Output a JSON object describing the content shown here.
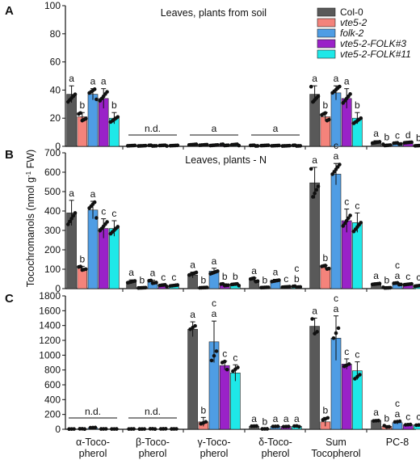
{
  "figure": {
    "y_axis_label": "Tocochromanols (nmol g",
    "y_axis_label_sup": "-1",
    "y_axis_label_end": " FW)",
    "x_categories": [
      [
        "α-Toco-",
        "pherol"
      ],
      [
        "β-Toco-",
        "pherol"
      ],
      [
        "γ-Toco-",
        "pherol"
      ],
      [
        "δ-Toco-",
        "pherol"
      ],
      [
        "Sum",
        "Tocopherol"
      ],
      [
        "PC-8",
        ""
      ]
    ]
  },
  "legend": {
    "placement": "top-right",
    "items": [
      {
        "label": "Col-0",
        "color": "#595959",
        "italic": false
      },
      {
        "label": "vte5-2",
        "color": "#f4837b",
        "italic": true
      },
      {
        "label": "folk-2",
        "color": "#4f9de4",
        "italic": true
      },
      {
        "label": "vte5-2-FOLK#3",
        "color": "#9a22c8",
        "italic": true
      },
      {
        "label": "vte5-2-FOLK#11",
        "color": "#1ee8e8",
        "italic": true
      }
    ]
  },
  "chart_data": [
    {
      "type": "bar",
      "panel": "A",
      "annotation": "Leaves, plants from soil",
      "categories": [
        "α-Tocopherol",
        "β-Tocopherol",
        "γ-Tocopherol",
        "δ-Tocopherol",
        "Sum Tocopherol",
        "PC-8"
      ],
      "ylim": [
        0,
        100
      ],
      "yticks": [
        0,
        20,
        40,
        60,
        80,
        100
      ],
      "series": [
        {
          "name": "Col-0",
          "values": [
            37,
            0.5,
            1,
            0.5,
            37,
            3
          ],
          "errors": [
            6,
            0.3,
            0.5,
            0.3,
            6,
            1
          ]
        },
        {
          "name": "vte5-2",
          "values": [
            21,
            0.5,
            1,
            0.5,
            21,
            1
          ],
          "errors": [
            3,
            0.3,
            0.5,
            0.3,
            3,
            0.5
          ]
        },
        {
          "name": "folk-2",
          "values": [
            37,
            0.5,
            1,
            0.5,
            38,
            2
          ],
          "errors": [
            4,
            0.3,
            0.5,
            0.3,
            5,
            0.5
          ]
        },
        {
          "name": "vte5-2-FOLK#3",
          "values": [
            34,
            0.5,
            1,
            0.5,
            34,
            2.5
          ],
          "errors": [
            7,
            0.3,
            0.5,
            0.3,
            7,
            0.5
          ]
        },
        {
          "name": "vte5-2-FOLK#11",
          "values": [
            20,
            0.5,
            1,
            0.5,
            20,
            0.5
          ],
          "errors": [
            4,
            0.3,
            0.5,
            0.3,
            4,
            0.3
          ]
        }
      ],
      "letters": [
        [
          "a",
          "b",
          "a",
          "a",
          "b"
        ],
        [
          "",
          "",
          "",
          "",
          ""
        ],
        [
          "",
          "",
          "",
          "",
          ""
        ],
        [
          "",
          "",
          "",
          "",
          ""
        ],
        [
          "a",
          "b",
          "a",
          "a",
          "b"
        ],
        [
          "a",
          "b",
          "c",
          "d",
          "b"
        ]
      ],
      "group_labels": [
        {
          "group": 1,
          "text": "n.d."
        },
        {
          "group": 2,
          "text": "a"
        },
        {
          "group": 3,
          "text": "a"
        }
      ]
    },
    {
      "type": "bar",
      "panel": "B",
      "annotation": "Leaves, plants - N",
      "categories": [
        "α-Tocopherol",
        "β-Tocopherol",
        "γ-Tocopherol",
        "δ-Tocopherol",
        "Sum Tocopherol",
        "PC-8"
      ],
      "ylim": [
        0,
        700
      ],
      "yticks": [
        0,
        100,
        200,
        300,
        400,
        500,
        600,
        700
      ],
      "series": [
        {
          "name": "Col-0",
          "values": [
            390,
            35,
            70,
            45,
            545,
            25
          ],
          "errors": [
            65,
            10,
            15,
            10,
            80,
            5
          ]
        },
        {
          "name": "vte5-2",
          "values": [
            105,
            5,
            5,
            5,
            110,
            5
          ],
          "errors": [
            10,
            2,
            2,
            2,
            10,
            2
          ]
        },
        {
          "name": "folk-2",
          "values": [
            405,
            35,
            90,
            40,
            590,
            25
          ],
          "errors": [
            45,
            8,
            15,
            8,
            55,
            5
          ]
        },
        {
          "name": "vte5-2-FOLK#3",
          "values": [
            310,
            15,
            20,
            10,
            350,
            20
          ],
          "errors": [
            50,
            5,
            5,
            3,
            60,
            5
          ]
        },
        {
          "name": "vte5-2-FOLK#11",
          "values": [
            310,
            15,
            20,
            10,
            340,
            15
          ],
          "errors": [
            40,
            5,
            5,
            3,
            50,
            5
          ]
        }
      ],
      "letters": [
        [
          "a",
          "b",
          "a",
          "c",
          "c"
        ],
        [
          "a",
          "b",
          "a",
          "c",
          "c"
        ],
        [
          "a",
          "b",
          "a",
          "b",
          "b"
        ],
        [
          "a",
          "b",
          "a",
          "c",
          "b"
        ],
        [
          "a",
          "b",
          "a",
          "c",
          "c"
        ],
        [
          "a",
          "b",
          "a",
          "c",
          "c"
        ]
      ],
      "letters_second": [
        [
          "",
          "",
          "",
          "",
          ""
        ],
        [
          "",
          "",
          "",
          "",
          ""
        ],
        [
          "",
          "",
          "",
          "",
          ""
        ],
        [
          "",
          "",
          "",
          "",
          "c"
        ],
        [
          "",
          "",
          "c",
          "",
          ""
        ],
        [
          "",
          "",
          "c",
          "",
          ""
        ]
      ]
    },
    {
      "type": "bar",
      "panel": "C",
      "annotation": "",
      "categories": [
        "α-Tocopherol",
        "β-Tocopherol",
        "γ-Tocopherol",
        "δ-Tocopherol",
        "Sum Tocopherol",
        "PC-8"
      ],
      "ylim": [
        0,
        1800
      ],
      "yticks": [
        0,
        200,
        400,
        600,
        800,
        1000,
        1200,
        1400,
        1600,
        1800
      ],
      "series": [
        {
          "name": "Col-0",
          "values": [
            5,
            5,
            1350,
            40,
            1390,
            120
          ],
          "errors": [
            2,
            2,
            100,
            5,
            110,
            10
          ]
        },
        {
          "name": "vte5-2",
          "values": [
            5,
            5,
            100,
            5,
            100,
            40
          ],
          "errors": [
            2,
            2,
            60,
            2,
            60,
            10
          ]
        },
        {
          "name": "folk-2",
          "values": [
            20,
            5,
            1180,
            40,
            1230,
            90
          ],
          "errors": [
            5,
            2,
            280,
            5,
            300,
            20
          ]
        },
        {
          "name": "vte5-2-FOLK#3",
          "values": [
            5,
            5,
            860,
            40,
            880,
            60
          ],
          "errors": [
            2,
            2,
            60,
            5,
            70,
            10
          ]
        },
        {
          "name": "vte5-2-FOLK#11",
          "values": [
            5,
            5,
            760,
            40,
            790,
            60
          ],
          "errors": [
            2,
            2,
            110,
            5,
            120,
            10
          ]
        }
      ],
      "letters": [
        [
          "",
          "",
          "",
          "",
          ""
        ],
        [
          "",
          "",
          "",
          "",
          ""
        ],
        [
          "a",
          "b",
          "a",
          "c",
          "c"
        ],
        [
          "a",
          "b",
          "a",
          "a",
          "a"
        ],
        [
          "a",
          "b",
          "a",
          "c",
          "c"
        ],
        [
          "a",
          "b",
          "a",
          "c",
          "c"
        ]
      ],
      "letters_second": [
        [
          "",
          "",
          "",
          "",
          ""
        ],
        [
          "",
          "",
          "",
          "",
          ""
        ],
        [
          "",
          "",
          "c",
          "",
          ""
        ],
        [
          "",
          "",
          "",
          "",
          ""
        ],
        [
          "",
          "",
          "c",
          "",
          ""
        ],
        [
          "",
          "",
          "c",
          "",
          ""
        ]
      ],
      "group_labels": [
        {
          "group": 0,
          "text": "n.d."
        },
        {
          "group": 1,
          "text": "n.d."
        }
      ]
    }
  ]
}
